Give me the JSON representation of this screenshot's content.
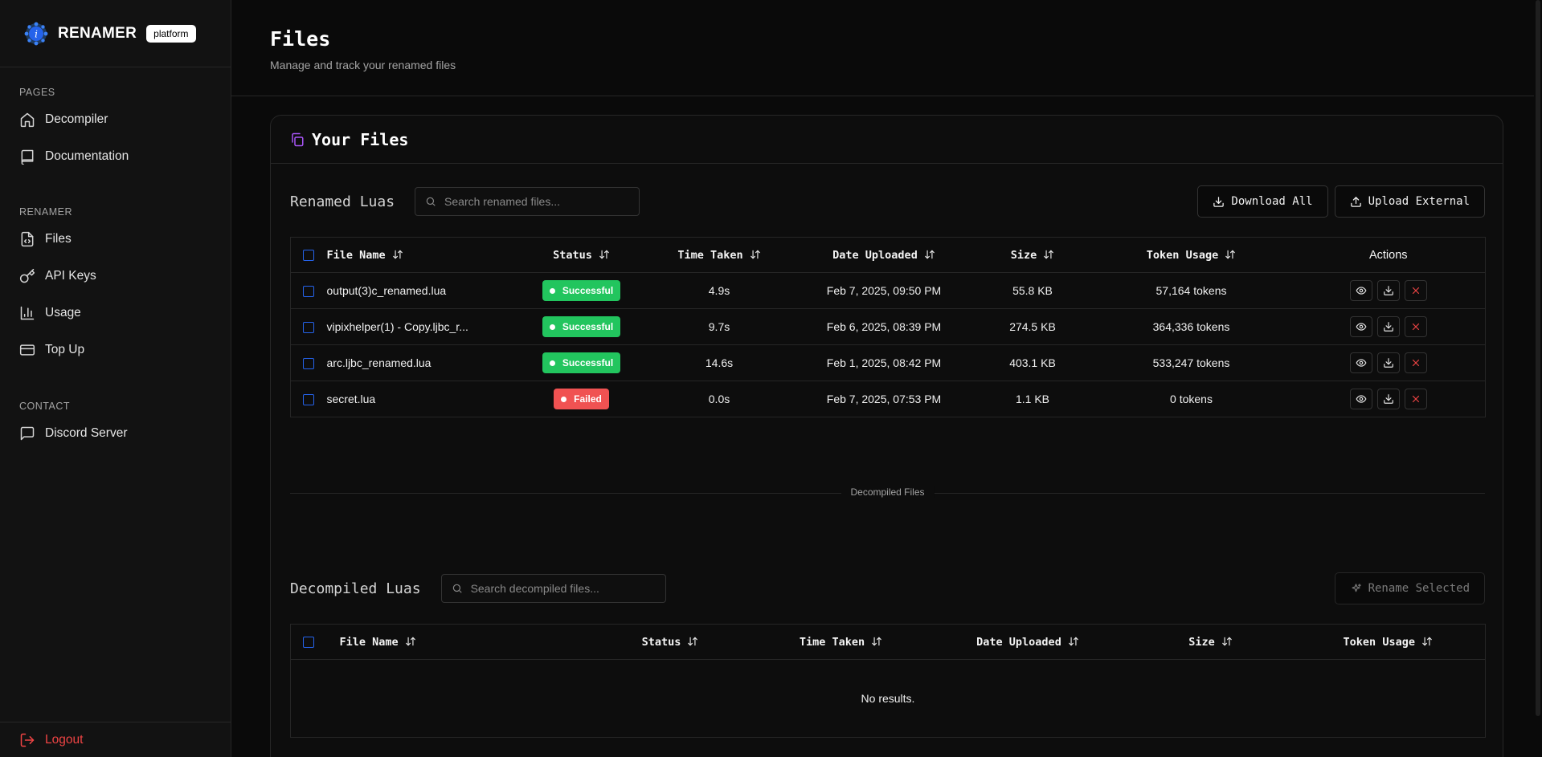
{
  "brand": {
    "name": "RENAMER",
    "badge": "platform"
  },
  "sidebar": {
    "sections": [
      {
        "title": "PAGES",
        "items": [
          {
            "label": "Decompiler",
            "icon": "home-icon"
          },
          {
            "label": "Documentation",
            "icon": "book-icon"
          }
        ]
      },
      {
        "title": "RENAMER",
        "items": [
          {
            "label": "Files",
            "icon": "file-code-icon"
          },
          {
            "label": "API Keys",
            "icon": "key-icon"
          },
          {
            "label": "Usage",
            "icon": "bar-chart-icon"
          },
          {
            "label": "Top Up",
            "icon": "credit-card-icon"
          }
        ]
      },
      {
        "title": "CONTACT",
        "items": [
          {
            "label": "Discord Server",
            "icon": "message-square-icon"
          }
        ]
      }
    ],
    "logout": "Logout"
  },
  "header": {
    "title": "Files",
    "subtitle": "Manage and track your renamed files"
  },
  "card": {
    "title": "Your Files"
  },
  "renamed": {
    "title": "Renamed Luas",
    "search_placeholder": "Search renamed files...",
    "download_all": "Download All",
    "upload_external": "Upload External",
    "columns": [
      "File Name",
      "Status",
      "Time Taken",
      "Date Uploaded",
      "Size",
      "Token Usage",
      "Actions"
    ],
    "rows": [
      {
        "name": "output(3)c_renamed.lua",
        "status": "Successful",
        "time": "4.9s",
        "date": "Feb 7, 2025, 09:50 PM",
        "size": "55.8 KB",
        "tokens": "57,164 tokens"
      },
      {
        "name": "vipixhelper(1) - Copy.ljbc_r...",
        "status": "Successful",
        "time": "9.7s",
        "date": "Feb 6, 2025, 08:39 PM",
        "size": "274.5 KB",
        "tokens": "364,336 tokens"
      },
      {
        "name": "arc.ljbc_renamed.lua",
        "status": "Successful",
        "time": "14.6s",
        "date": "Feb 1, 2025, 08:42 PM",
        "size": "403.1 KB",
        "tokens": "533,247 tokens"
      },
      {
        "name": "secret.lua",
        "status": "Failed",
        "time": "0.0s",
        "date": "Feb 7, 2025, 07:53 PM",
        "size": "1.1 KB",
        "tokens": "0 tokens"
      }
    ]
  },
  "divider_label": "Decompiled Files",
  "decompiled": {
    "title": "Decompiled Luas",
    "search_placeholder": "Search decompiled files...",
    "rename_selected": "Rename Selected",
    "columns": [
      "File Name",
      "Status",
      "Time Taken",
      "Date Uploaded",
      "Size",
      "Token Usage"
    ],
    "empty": "No results."
  },
  "colors": {
    "success": "#22c55e",
    "failed": "#f05252",
    "checkbox": "#2563eb",
    "logout": "#ef4444",
    "accent_icon": "#a855f7"
  }
}
